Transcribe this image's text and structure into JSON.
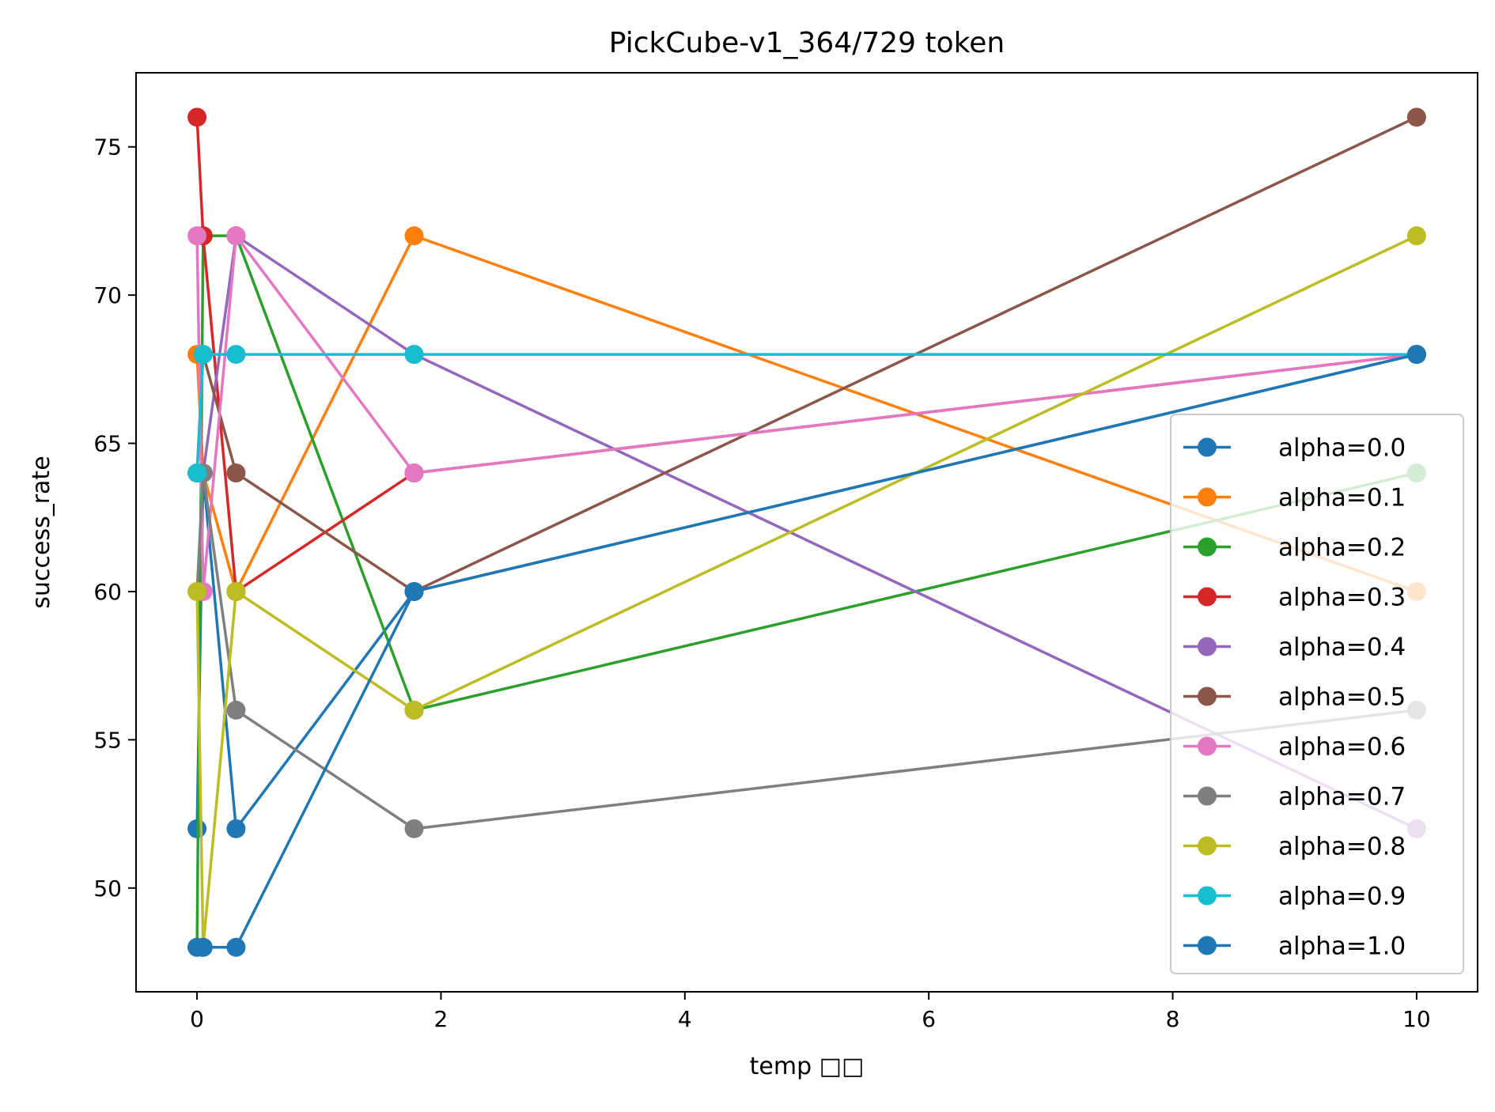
{
  "chart_data": {
    "type": "line",
    "title": "PickCube-v1_364/729 token",
    "xlabel": "temp □□",
    "ylabel": "success_rate",
    "xlim": [
      -0.5,
      10.5
    ],
    "ylim": [
      46.5,
      77.5
    ],
    "xticks": [
      0,
      2,
      4,
      6,
      8,
      10
    ],
    "yticks": [
      50,
      55,
      60,
      65,
      70,
      75
    ],
    "legend_position": "lower-right",
    "grid": false,
    "x": [
      0.0,
      0.05,
      0.32,
      1.78,
      10.0
    ],
    "series": [
      {
        "name": "alpha=0.0",
        "color": "#1f77b4",
        "values": [
          52,
          64,
          52,
          60,
          68
        ]
      },
      {
        "name": "alpha=0.1",
        "color": "#ff7f0e",
        "values": [
          68,
          64,
          60,
          72,
          60
        ]
      },
      {
        "name": "alpha=0.2",
        "color": "#2ca02c",
        "values": [
          48,
          72,
          72,
          56,
          64
        ]
      },
      {
        "name": "alpha=0.3",
        "color": "#d62728",
        "values": [
          76,
          72,
          60,
          64,
          68
        ]
      },
      {
        "name": "alpha=0.4",
        "color": "#9467bd",
        "values": [
          64,
          64,
          72,
          68,
          52
        ]
      },
      {
        "name": "alpha=0.5",
        "color": "#8c564b",
        "values": [
          64,
          68,
          64,
          60,
          76
        ]
      },
      {
        "name": "alpha=0.6",
        "color": "#e377c2",
        "values": [
          72,
          60,
          72,
          64,
          68
        ]
      },
      {
        "name": "alpha=0.7",
        "color": "#7f7f7f",
        "values": [
          60,
          64,
          56,
          52,
          56
        ]
      },
      {
        "name": "alpha=0.8",
        "color": "#bcbd22",
        "values": [
          60,
          48,
          60,
          56,
          72
        ]
      },
      {
        "name": "alpha=0.9",
        "color": "#17becf",
        "values": [
          64,
          68,
          68,
          68,
          68
        ]
      },
      {
        "name": "alpha=1.0",
        "color": "#1f77b4",
        "values": [
          48,
          48,
          48,
          60,
          68
        ]
      }
    ]
  }
}
